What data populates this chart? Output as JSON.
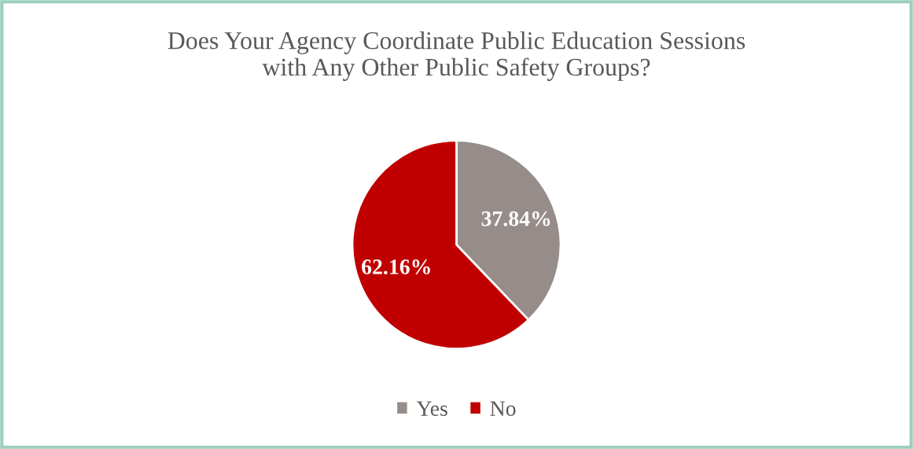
{
  "chart_data": {
    "type": "pie",
    "title": "Does Your Agency Coordinate Public Education Sessions\nwith Any Other Public Safety Groups?",
    "categories": [
      "Yes",
      "No"
    ],
    "values": [
      37.84,
      62.16
    ],
    "colors": [
      "#968d8b",
      "#c00000"
    ],
    "value_labels": [
      "37.84%",
      "62.16%"
    ],
    "legend": "bottom"
  }
}
